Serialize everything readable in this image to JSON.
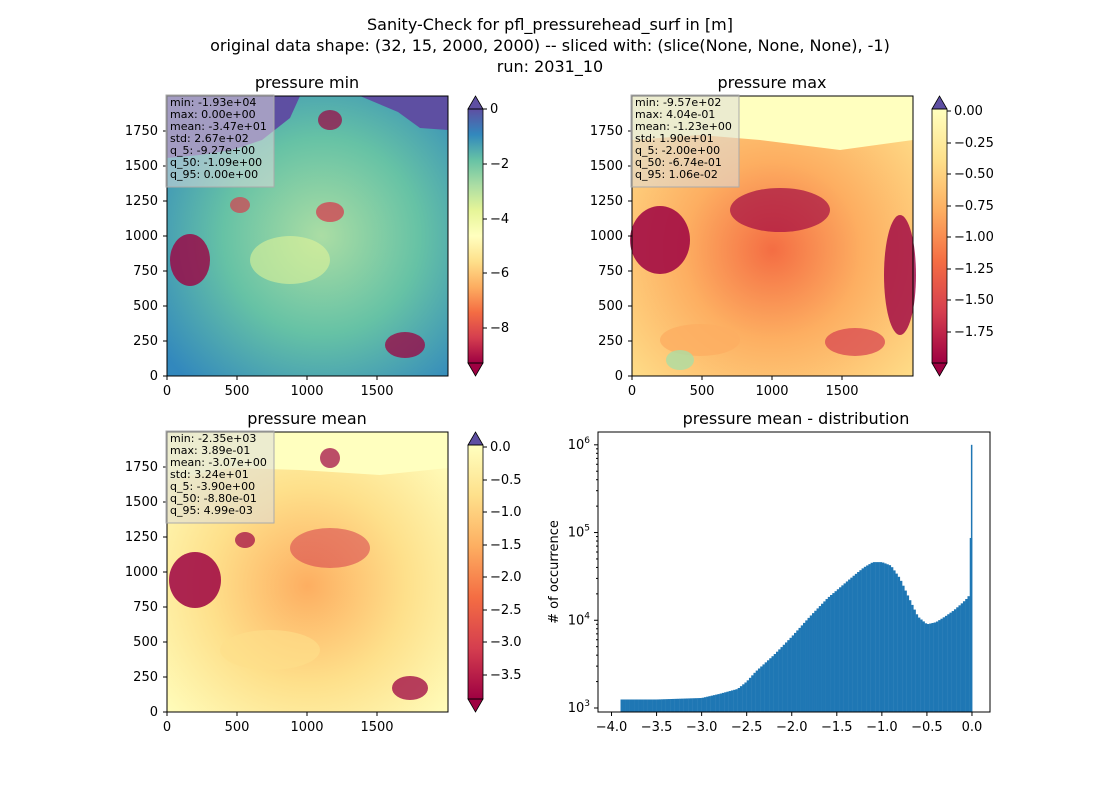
{
  "figure": {
    "suptitle": [
      "Sanity-Check for pfl_pressurehead_surf in [m]",
      "original data shape: (32, 15, 2000, 2000) -- sliced with: (slice(None, None, None), -1)",
      "run: 2031_10"
    ]
  },
  "panels": [
    {
      "id": "min",
      "title": "pressure min",
      "xticks": [
        "0",
        "500",
        "1000",
        "1500"
      ],
      "yticks": [
        "0",
        "250",
        "500",
        "750",
        "1000",
        "1250",
        "1500",
        "1750"
      ],
      "cbar_ticks": [
        "0",
        "−2",
        "−4",
        "−6",
        "−8"
      ],
      "cbar_range": [
        -9.27,
        0.0
      ],
      "colormap": "Spectral",
      "stats": [
        "min: -1.93e+04",
        "max: 0.00e+00",
        "mean: -3.47e+01",
        "std: 2.67e+02",
        "q_5: -9.27e+00",
        "q_50: -1.09e+00",
        "q_95: 0.00e+00"
      ]
    },
    {
      "id": "max",
      "title": "pressure max",
      "xticks": [
        "0",
        "500",
        "1000",
        "1500"
      ],
      "yticks": [
        "0",
        "250",
        "500",
        "750",
        "1000",
        "1250",
        "1500",
        "1750"
      ],
      "cbar_ticks": [
        "0.00",
        "−0.25",
        "−0.50",
        "−0.75",
        "−1.00",
        "−1.25",
        "−1.50",
        "−1.75"
      ],
      "cbar_range": [
        -2.0,
        0.0
      ],
      "colormap": "Spectral",
      "stats": [
        "min: -9.57e+02",
        "max: 4.04e-01",
        "mean: -1.23e+00",
        "std: 1.90e+01",
        "q_5: -2.00e+00",
        "q_50: -6.74e-01",
        "q_95: 1.06e-02"
      ]
    },
    {
      "id": "mean",
      "title": "pressure mean",
      "xticks": [
        "0",
        "500",
        "1000",
        "1500"
      ],
      "yticks": [
        "0",
        "250",
        "500",
        "750",
        "1000",
        "1250",
        "1500",
        "1750"
      ],
      "cbar_ticks": [
        "0.0",
        "−0.5",
        "−1.0",
        "−1.5",
        "−2.0",
        "−2.5",
        "−3.0",
        "−3.5"
      ],
      "cbar_range": [
        -3.9,
        0.0
      ],
      "colormap": "Spectral",
      "stats": [
        "min: -2.35e+03",
        "max: 3.89e-01",
        "mean: -3.07e+00",
        "std: 3.24e+01",
        "q_5: -3.90e+00",
        "q_50: -8.80e-01",
        "q_95: 4.99e-03"
      ]
    }
  ],
  "chart_data": {
    "type": "bar",
    "title": "pressure mean - distribution",
    "ylabel": "# of occurrence",
    "xlabel": "",
    "yscale": "log",
    "xlim": [
      -4.15,
      0.2
    ],
    "ylim": [
      900,
      1400000
    ],
    "color": "#1f77b4",
    "xticks": [
      -4.0,
      -3.5,
      -3.0,
      -2.5,
      -2.0,
      -1.5,
      -1.0,
      -0.5,
      0.0
    ],
    "xtick_labels": [
      "−4.0",
      "−3.5",
      "−3.0",
      "−2.5",
      "−2.0",
      "−1.5",
      "−1.0",
      "−0.5",
      "0.0"
    ],
    "yticks": [
      1000,
      10000,
      100000,
      1000000
    ],
    "ytick_labels": [
      "10^3",
      "10^4",
      "10^5",
      "10^6"
    ],
    "x": [
      -3.9,
      -3.5,
      -3.2,
      -3.0,
      -2.8,
      -2.6,
      -2.5,
      -2.4,
      -2.2,
      -2.0,
      -1.8,
      -1.6,
      -1.5,
      -1.4,
      -1.3,
      -1.2,
      -1.1,
      -1.0,
      -0.9,
      -0.8,
      -0.7,
      -0.6,
      -0.5,
      -0.4,
      -0.3,
      -0.2,
      -0.1,
      -0.05,
      -0.02,
      0.0
    ],
    "y": [
      1250,
      1250,
      1280,
      1300,
      1450,
      1650,
      2000,
      2600,
      4000,
      6500,
      11000,
      18000,
      22000,
      27000,
      33000,
      40000,
      46000,
      46000,
      42000,
      30000,
      18000,
      11000,
      9000,
      9500,
      11000,
      13000,
      16000,
      18000,
      20000,
      1000000
    ]
  }
}
